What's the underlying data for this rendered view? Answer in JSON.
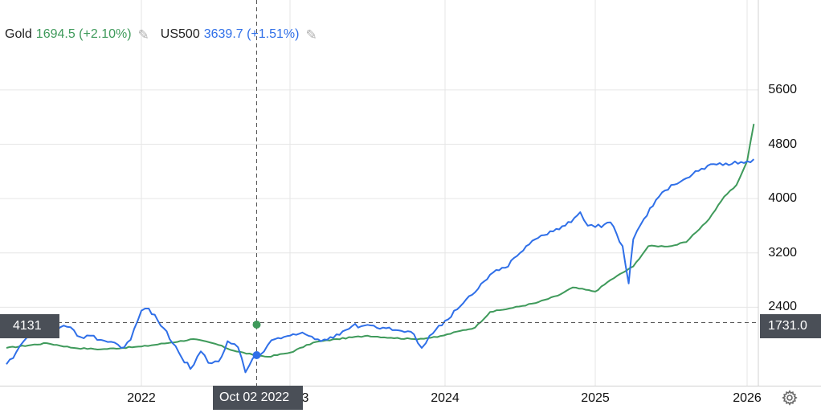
{
  "legend": [
    {
      "symbol": "Gold",
      "value": "1694.5 (+2.10%)",
      "color": "#3f9a5b"
    },
    {
      "symbol": "US500",
      "value": "3639.7 (+1.51%)",
      "color": "#2f6fe8"
    }
  ],
  "crosshair": {
    "date_label": "Oct 02 2022",
    "left_value_label": "4131",
    "right_value_label": "1731.0"
  },
  "colors": {
    "gold": "#3f9a5b",
    "us500": "#2f6fe8",
    "tag_bg": "#4a4f57",
    "grid": "#e6e6e6"
  },
  "icons": {
    "pencil": "pencil-icon",
    "settings": "gear-icon"
  },
  "chart_data": {
    "type": "line",
    "x_ticks": [
      "2022",
      "3",
      "2024",
      "2025",
      "2026"
    ],
    "y_ticks": [
      "5600",
      "4800",
      "4000",
      "3200",
      "2400"
    ],
    "ylim": [
      1250,
      6200
    ],
    "xlim": [
      2021.0,
      2026.05
    ],
    "grid": true,
    "legend_position": "top-left",
    "series": [
      {
        "name": "Gold",
        "color": "#3f9a5b",
        "x": [
          2021.0,
          2021.3,
          2021.5,
          2021.7,
          2022.0,
          2022.2,
          2022.35,
          2022.5,
          2022.62,
          2022.75,
          2022.85,
          2023.0,
          2023.15,
          2023.3,
          2023.5,
          2023.65,
          2023.8,
          2023.95,
          2024.1,
          2024.2,
          2024.3,
          2024.45,
          2024.6,
          2024.75,
          2024.85,
          2025.0,
          2025.1,
          2025.25,
          2025.35,
          2025.5,
          2025.6,
          2025.75,
          2025.85,
          2025.93,
          2026.0,
          2026.03
        ],
        "y": [
          1800,
          1870,
          1800,
          1780,
          1820,
          1880,
          1930,
          1860,
          1760,
          1700,
          1670,
          1730,
          1880,
          1930,
          1980,
          1950,
          1930,
          1960,
          2050,
          2100,
          2330,
          2390,
          2460,
          2570,
          2690,
          2630,
          2800,
          3000,
          3300,
          3300,
          3360,
          3700,
          4030,
          4200,
          4550,
          5100
        ]
      },
      {
        "name": "US500",
        "color": "#2f6fe8",
        "x": [
          2021.0,
          2021.05,
          2021.15,
          2021.3,
          2021.45,
          2021.55,
          2021.62,
          2021.7,
          2021.8,
          2021.85,
          2021.92,
          2022.0,
          2022.05,
          2022.15,
          2022.25,
          2022.33,
          2022.4,
          2022.45,
          2022.52,
          2022.58,
          2022.65,
          2022.7,
          2022.75,
          2022.8,
          2022.85,
          2022.9,
          2023.0,
          2023.1,
          2023.2,
          2023.3,
          2023.4,
          2023.5,
          2023.6,
          2023.7,
          2023.8,
          2023.85,
          2023.9,
          2024.0,
          2024.1,
          2024.2,
          2024.3,
          2024.4,
          2024.5,
          2024.6,
          2024.7,
          2024.8,
          2024.9,
          2024.95,
          2025.0,
          2025.1,
          2025.18,
          2025.22,
          2025.25,
          2025.3,
          2025.4,
          2025.5,
          2025.6,
          2025.7,
          2025.8,
          2025.9,
          2026.0,
          2026.03
        ],
        "y": [
          1560,
          1650,
          1950,
          2050,
          2110,
          1960,
          1980,
          1920,
          1880,
          1800,
          1920,
          2350,
          2380,
          2090,
          1740,
          1490,
          1750,
          1580,
          1600,
          1900,
          1810,
          1440,
          1650,
          1700,
          1840,
          1930,
          1980,
          2000,
          1900,
          2000,
          2120,
          2140,
          2100,
          2060,
          2000,
          1800,
          1980,
          2200,
          2410,
          2620,
          2880,
          2980,
          3200,
          3400,
          3520,
          3600,
          3800,
          3600,
          3580,
          3650,
          3300,
          2750,
          3400,
          3620,
          3980,
          4200,
          4300,
          4440,
          4500,
          4510,
          4550,
          4580
        ]
      }
    ]
  }
}
